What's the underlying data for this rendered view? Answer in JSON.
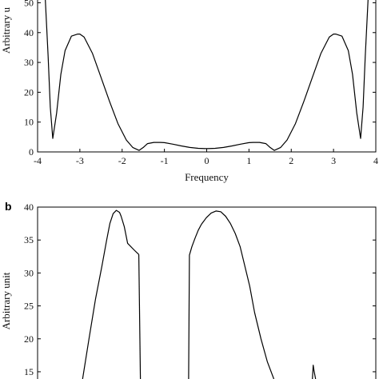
{
  "chart_data": [
    {
      "panel": "",
      "type": "line",
      "xlabel": "Frequency",
      "ylabel": "Arbitrary u",
      "xlim": [
        -4,
        4
      ],
      "ylim": [
        0,
        52
      ],
      "xticks": [
        "-4",
        "-3",
        "-2",
        "-1",
        "0",
        "1",
        "2",
        "3",
        "4"
      ],
      "yticks": [
        "0",
        "10",
        "20",
        "30",
        "40",
        "50"
      ],
      "grid": false,
      "series": [
        {
          "x": [
            -3.82,
            -3.75,
            -3.7,
            -3.64,
            -3.55,
            -3.45,
            -3.35,
            -3.2,
            -3.05,
            -3.0,
            -2.9,
            -2.7,
            -2.5,
            -2.3,
            -2.1,
            -1.9,
            -1.75,
            -1.6,
            -1.5,
            -1.4,
            -1.25,
            -1.1,
            -1.0,
            -0.8,
            -0.6,
            -0.4,
            -0.2,
            0.0,
            0.2,
            0.4,
            0.6,
            0.8,
            1.0,
            1.1,
            1.25,
            1.4,
            1.5,
            1.6,
            1.75,
            1.9,
            2.1,
            2.3,
            2.5,
            2.7,
            2.9,
            3.0,
            3.05,
            3.2,
            3.35,
            3.45,
            3.55,
            3.64,
            3.7,
            3.75,
            3.82
          ],
          "y": [
            52,
            32,
            15,
            4.5,
            13,
            26,
            34,
            38.8,
            39.5,
            39.5,
            38.5,
            33,
            25,
            17,
            9.5,
            4,
            1.5,
            0.5,
            1.5,
            2.8,
            3.2,
            3.2,
            3.1,
            2.6,
            2.0,
            1.5,
            1.2,
            1.1,
            1.2,
            1.5,
            2.0,
            2.6,
            3.1,
            3.2,
            3.2,
            2.8,
            1.5,
            0.5,
            1.5,
            4,
            9.5,
            17,
            25,
            33,
            38.5,
            39.5,
            39.5,
            38.8,
            34,
            26,
            13,
            4.5,
            15,
            32,
            52
          ]
        }
      ]
    },
    {
      "panel": "b",
      "type": "line",
      "xlabel": "",
      "ylabel": "Arbitrary unit",
      "ylim": [
        13.9,
        40
      ],
      "yticks": [
        "15",
        "20",
        "25",
        "30",
        "35",
        "40"
      ],
      "grid": false,
      "series": [
        {
          "segments": [
            {
              "x": [
                0.28,
                0.32,
                0.36,
                0.4,
                0.43,
                0.45,
                0.47,
                0.49,
                0.51,
                0.52,
                0.54,
                0.56,
                0.6,
                0.63
              ],
              "y": [
                13.9,
                20,
                26,
                31,
                35,
                37.5,
                39,
                39.5,
                39.2,
                38.6,
                37,
                34.5,
                33.5,
                32.8
              ]
            },
            {
              "x": [
                0.63,
                0.64
              ],
              "y": [
                32.8,
                13.9
              ]
            },
            {
              "x": [
                0.94,
                0.945,
                0.96,
                0.98,
                1.0,
                1.02,
                1.05,
                1.08,
                1.11,
                1.14,
                1.17,
                1.2,
                1.23,
                1.26,
                1.29,
                1.32,
                1.35,
                1.39,
                1.43,
                1.47
              ],
              "y": [
                13.9,
                32.7,
                34,
                35.3,
                36.5,
                37.4,
                38.4,
                39.1,
                39.4,
                39.3,
                38.6,
                37.5,
                36,
                34,
                31,
                28,
                24,
                20,
                16.5,
                13.9
              ]
            },
            {
              "x": [
                1.71,
                1.715,
                1.72,
                1.73
              ],
              "y": [
                13.9,
                16,
                15.2,
                13.9
              ]
            }
          ]
        }
      ]
    }
  ]
}
